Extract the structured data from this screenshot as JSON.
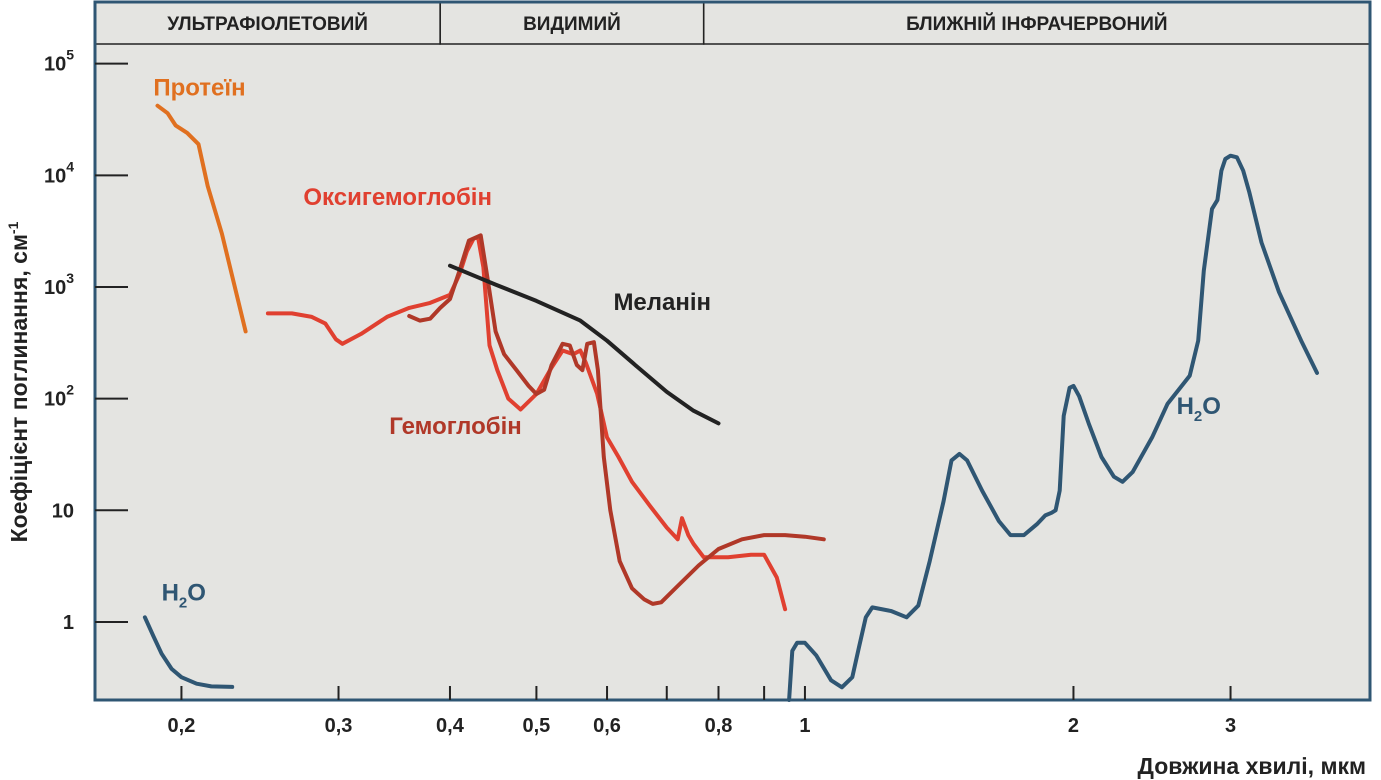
{
  "chart_data": {
    "type": "line",
    "title": "",
    "xlabel": "Довжина хвилі, мкм",
    "ylabel": "Коефіцієнт поглинання, см",
    "ylabel_superscript": "-1",
    "x_scale": "log",
    "y_scale": "log",
    "xlim": [
      0.16,
      4.3
    ],
    "ylim": [
      0.2,
      150000
    ],
    "grid": false,
    "background": "#e4e4e1",
    "bands": [
      {
        "label": "УЛЬТРАФІОЛЕТОВИЙ",
        "from": 0.16,
        "to": 0.39
      },
      {
        "label": "ВИДИМИЙ",
        "from": 0.39,
        "to": 0.77
      },
      {
        "label": "БЛИЖНІЙ ІНФРАЧЕРВОНИЙ",
        "from": 0.77,
        "to": 4.3
      }
    ],
    "x_ticks": [
      {
        "value": 0.2,
        "label": "0,2"
      },
      {
        "value": 0.3,
        "label": "0,3"
      },
      {
        "value": 0.4,
        "label": "0,4"
      },
      {
        "value": 0.5,
        "label": "0,5"
      },
      {
        "value": 0.6,
        "label": "0,6"
      },
      {
        "value": 0.7,
        "label": ""
      },
      {
        "value": 0.8,
        "label": "0,8"
      },
      {
        "value": 0.9,
        "label": ""
      },
      {
        "value": 1,
        "label": "1"
      },
      {
        "value": 2,
        "label": "2"
      },
      {
        "value": 3,
        "label": "3"
      }
    ],
    "y_ticks": [
      {
        "value": 1,
        "base": "1",
        "exp": ""
      },
      {
        "value": 10,
        "base": "10",
        "exp": ""
      },
      {
        "value": 100,
        "base": "10",
        "exp": "2"
      },
      {
        "value": 1000,
        "base": "10",
        "exp": "3"
      },
      {
        "value": 10000,
        "base": "10",
        "exp": "4"
      },
      {
        "value": 100000,
        "base": "10",
        "exp": "5"
      }
    ],
    "series": [
      {
        "name": "Протеїн",
        "color": "#e07020",
        "label": {
          "text": "Протеїн",
          "x": 0.186,
          "y": 52000
        },
        "points": [
          [
            0.188,
            42000
          ],
          [
            0.193,
            36000
          ],
          [
            0.197,
            28000
          ],
          [
            0.203,
            24000
          ],
          [
            0.209,
            19000
          ],
          [
            0.214,
            8000
          ],
          [
            0.222,
            3000
          ],
          [
            0.236,
            400
          ]
        ]
      },
      {
        "name": "Оксигемоглобін",
        "color": "#e04030",
        "label": {
          "text": "Оксигемоглобін",
          "x": 0.274,
          "y": 5400
        },
        "points": [
          [
            0.25,
            580
          ],
          [
            0.266,
            580
          ],
          [
            0.28,
            540
          ],
          [
            0.29,
            470
          ],
          [
            0.298,
            340
          ],
          [
            0.303,
            310
          ],
          [
            0.318,
            380
          ],
          [
            0.34,
            540
          ],
          [
            0.36,
            650
          ],
          [
            0.38,
            720
          ],
          [
            0.4,
            850
          ],
          [
            0.41,
            1300
          ],
          [
            0.418,
            2100
          ],
          [
            0.425,
            2700
          ],
          [
            0.43,
            2800
          ],
          [
            0.436,
            1500
          ],
          [
            0.443,
            300
          ],
          [
            0.452,
            180
          ],
          [
            0.465,
            100
          ],
          [
            0.48,
            80
          ],
          [
            0.5,
            110
          ],
          [
            0.52,
            190
          ],
          [
            0.535,
            270
          ],
          [
            0.55,
            250
          ],
          [
            0.56,
            270
          ],
          [
            0.568,
            210
          ],
          [
            0.585,
            110
          ],
          [
            0.6,
            45
          ],
          [
            0.618,
            30
          ],
          [
            0.64,
            18
          ],
          [
            0.67,
            11
          ],
          [
            0.7,
            7
          ],
          [
            0.72,
            5.5
          ],
          [
            0.728,
            8.5
          ],
          [
            0.74,
            6
          ],
          [
            0.75,
            5
          ],
          [
            0.77,
            3.8
          ],
          [
            0.82,
            3.8
          ],
          [
            0.87,
            4
          ],
          [
            0.9,
            4
          ],
          [
            0.93,
            2.5
          ],
          [
            0.95,
            1.3
          ]
        ]
      },
      {
        "name": "Гемоглобін",
        "color": "#b03828",
        "label": {
          "text": "Гемоглобін",
          "x": 0.342,
          "y": 48
        },
        "points": [
          [
            0.36,
            550
          ],
          [
            0.37,
            500
          ],
          [
            0.38,
            520
          ],
          [
            0.39,
            650
          ],
          [
            0.4,
            780
          ],
          [
            0.41,
            1400
          ],
          [
            0.42,
            2600
          ],
          [
            0.433,
            2900
          ],
          [
            0.44,
            1300
          ],
          [
            0.45,
            400
          ],
          [
            0.46,
            250
          ],
          [
            0.475,
            180
          ],
          [
            0.49,
            130
          ],
          [
            0.5,
            110
          ],
          [
            0.51,
            120
          ],
          [
            0.52,
            200
          ],
          [
            0.535,
            310
          ],
          [
            0.545,
            300
          ],
          [
            0.555,
            200
          ],
          [
            0.563,
            180
          ],
          [
            0.57,
            310
          ],
          [
            0.58,
            320
          ],
          [
            0.586,
            180
          ],
          [
            0.595,
            30
          ],
          [
            0.605,
            10
          ],
          [
            0.62,
            3.5
          ],
          [
            0.64,
            2
          ],
          [
            0.66,
            1.6
          ],
          [
            0.675,
            1.45
          ],
          [
            0.69,
            1.5
          ],
          [
            0.72,
            2.1
          ],
          [
            0.76,
            3.2
          ],
          [
            0.8,
            4.5
          ],
          [
            0.85,
            5.5
          ],
          [
            0.9,
            6
          ],
          [
            0.95,
            6
          ],
          [
            1.0,
            5.8
          ],
          [
            1.05,
            5.5
          ]
        ]
      },
      {
        "name": "Меланін",
        "color": "#222222",
        "label": {
          "text": "Меланін",
          "x": 0.61,
          "y": 620
        },
        "points": [
          [
            0.4,
            1550
          ],
          [
            0.45,
            1050
          ],
          [
            0.5,
            750
          ],
          [
            0.56,
            500
          ],
          [
            0.6,
            330
          ],
          [
            0.65,
            190
          ],
          [
            0.7,
            115
          ],
          [
            0.75,
            78
          ],
          [
            0.8,
            60
          ]
        ]
      },
      {
        "name": "H2O (УФ)",
        "color": "#2f5673",
        "label": {
          "text": "H",
          "sub": "2",
          "tail": "O",
          "x": 0.19,
          "y": 1.55
        },
        "points": [
          [
            0.182,
            1.1
          ],
          [
            0.186,
            0.75
          ],
          [
            0.19,
            0.52
          ],
          [
            0.195,
            0.38
          ],
          [
            0.2,
            0.32
          ],
          [
            0.208,
            0.28
          ],
          [
            0.216,
            0.265
          ],
          [
            0.228,
            0.262
          ]
        ]
      },
      {
        "name": "H2O",
        "color": "#2f5673",
        "label": {
          "text": "H",
          "sub": "2",
          "tail": "O",
          "x": 2.61,
          "y": 73
        },
        "points": [
          [
            0.96,
            0.2
          ],
          [
            0.968,
            0.55
          ],
          [
            0.98,
            0.65
          ],
          [
            1.0,
            0.65
          ],
          [
            1.03,
            0.5
          ],
          [
            1.07,
            0.3
          ],
          [
            1.1,
            0.26
          ],
          [
            1.13,
            0.32
          ],
          [
            1.15,
            0.6
          ],
          [
            1.17,
            1.1
          ],
          [
            1.19,
            1.35
          ],
          [
            1.25,
            1.25
          ],
          [
            1.3,
            1.1
          ],
          [
            1.34,
            1.4
          ],
          [
            1.38,
            3.5
          ],
          [
            1.43,
            12
          ],
          [
            1.46,
            28
          ],
          [
            1.49,
            32
          ],
          [
            1.52,
            28
          ],
          [
            1.58,
            15
          ],
          [
            1.65,
            8
          ],
          [
            1.7,
            6
          ],
          [
            1.76,
            6
          ],
          [
            1.82,
            7.5
          ],
          [
            1.86,
            9
          ],
          [
            1.89,
            9.5
          ],
          [
            1.91,
            10
          ],
          [
            1.93,
            15
          ],
          [
            1.95,
            70
          ],
          [
            1.98,
            125
          ],
          [
            2.0,
            130
          ],
          [
            2.03,
            105
          ],
          [
            2.08,
            60
          ],
          [
            2.15,
            30
          ],
          [
            2.22,
            20
          ],
          [
            2.27,
            18
          ],
          [
            2.33,
            22
          ],
          [
            2.45,
            45
          ],
          [
            2.55,
            90
          ],
          [
            2.7,
            160
          ],
          [
            2.76,
            330
          ],
          [
            2.8,
            1400
          ],
          [
            2.86,
            5000
          ],
          [
            2.9,
            6000
          ],
          [
            2.93,
            11000
          ],
          [
            2.96,
            14000
          ],
          [
            3.0,
            15000
          ],
          [
            3.05,
            14500
          ],
          [
            3.1,
            11000
          ],
          [
            3.15,
            7000
          ],
          [
            3.25,
            2500
          ],
          [
            3.4,
            900
          ],
          [
            3.6,
            330
          ],
          [
            3.75,
            170
          ]
        ]
      }
    ]
  }
}
